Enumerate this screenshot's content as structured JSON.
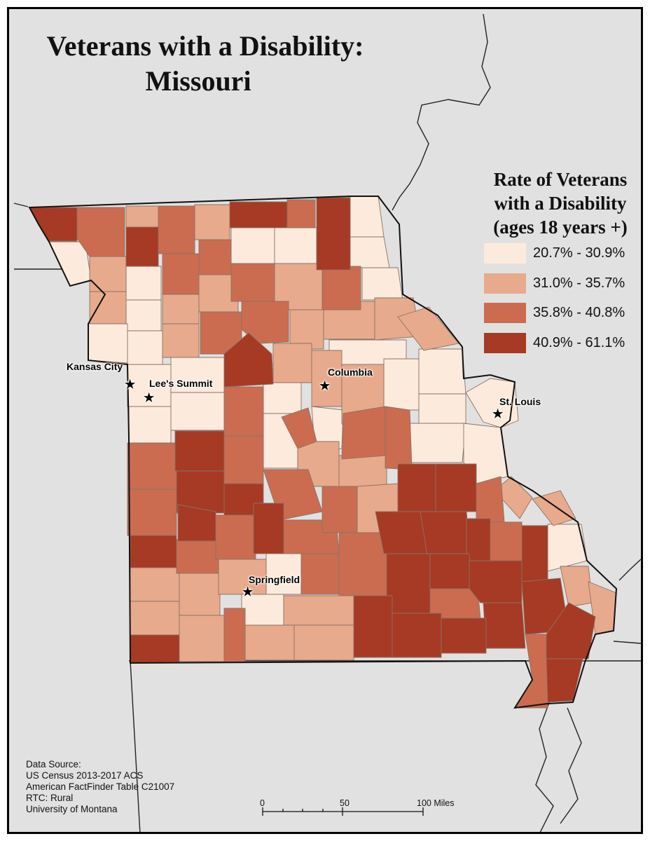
{
  "title": {
    "line1": "Veterans with a Disability:",
    "line2": "Missouri"
  },
  "legend": {
    "title_lines": [
      "Rate of Veterans",
      "with a Disability",
      "(ages 18 years +)"
    ],
    "classes": [
      {
        "label": "20.7% - 30.9%",
        "color": "#fcebdc"
      },
      {
        "label": "31.0% - 35.7%",
        "color": "#e8aa8c"
      },
      {
        "label": "35.8% - 40.8%",
        "color": "#cb6c51"
      },
      {
        "label": "40.9% - 61.1%",
        "color": "#a63a24"
      }
    ]
  },
  "cities": [
    {
      "name": "Kansas City"
    },
    {
      "name": "Lee's Summit"
    },
    {
      "name": "Columbia"
    },
    {
      "name": "St. Louis"
    },
    {
      "name": "Springfield"
    }
  ],
  "data_source": [
    "Data Source:",
    "US Census 2013-2017 ACS",
    "American FactFinder Table C21007",
    "RTC: Rural",
    "University of Montana"
  ],
  "scale_bar": {
    "labels": [
      "0",
      "50",
      "100 Miles"
    ]
  },
  "colors": {
    "background": "#e1e1e1",
    "county_border": "#8a7266",
    "outline": "#111111"
  }
}
